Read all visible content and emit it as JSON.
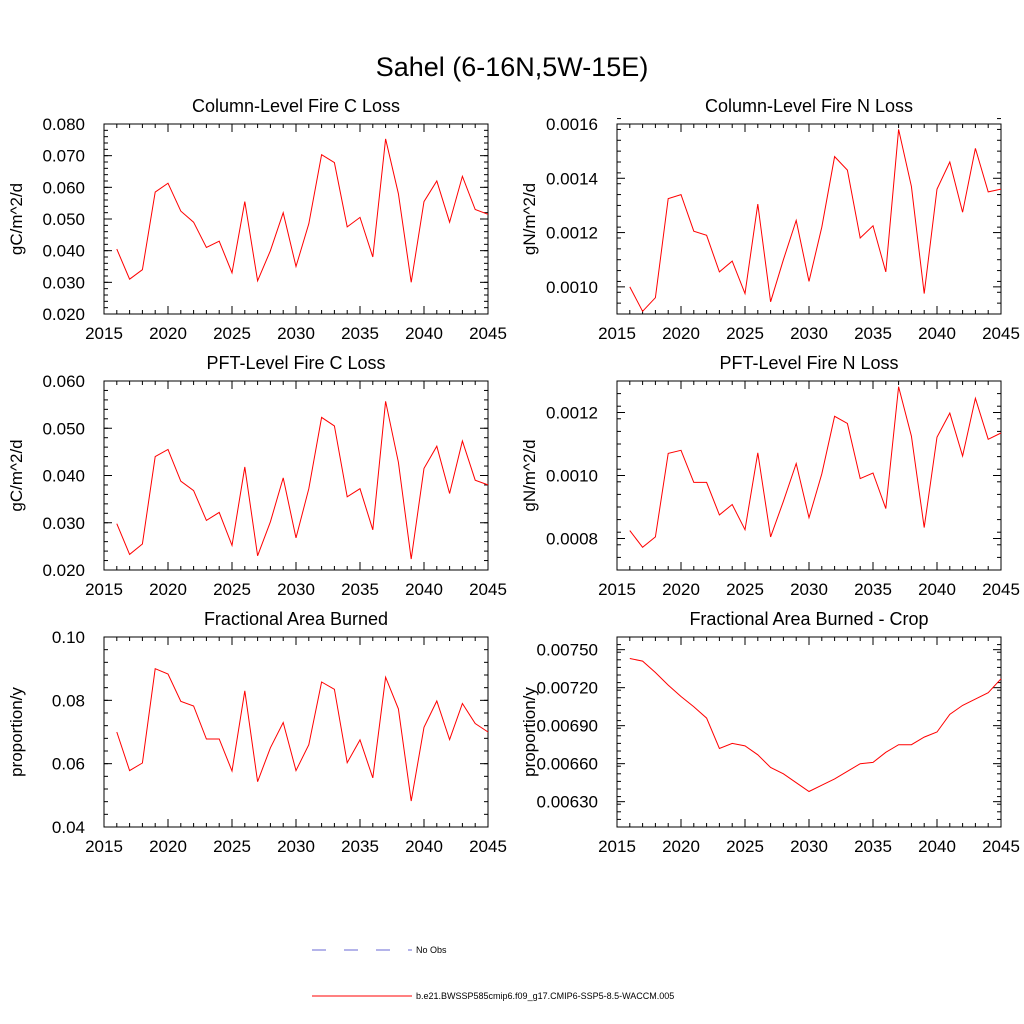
{
  "figure_title": "Sahel (6-16N,5W-15E)",
  "colors": {
    "series": "#ff0000",
    "obs": "#6a6ad6",
    "axis": "#000000"
  },
  "legend": {
    "obs_label": "No Obs",
    "model_label": "b.e21.BWSSP585cmip6.f09_g17.CMIP6-SSP5-8.5-WACCM.005"
  },
  "chart_data": [
    {
      "type": "line",
      "title": "Column-Level Fire C Loss",
      "xlabel": "",
      "ylabel": "gC/m^2/d",
      "xlim": [
        2015,
        2045
      ],
      "ylim": [
        0.02,
        0.08
      ],
      "xticks": [
        2015,
        2020,
        2025,
        2030,
        2035,
        2040,
        2045
      ],
      "xtick_labels": [
        "2015",
        "2020",
        "2025",
        "2030",
        "2035",
        "2040",
        "2045"
      ],
      "yticks": [
        0.02,
        0.03,
        0.04,
        0.05,
        0.06,
        0.07,
        0.08
      ],
      "ytick_labels": [
        "0.020",
        "0.030",
        "0.040",
        "0.050",
        "0.060",
        "0.070",
        "0.080"
      ],
      "yminor": 0.002,
      "series": [
        {
          "name": "b.e21.BWSSP585cmip6.f09_g17.CMIP6-SSP5-8.5-WACCM.005",
          "x": [
            2016,
            2017,
            2018,
            2019,
            2020,
            2021,
            2022,
            2023,
            2024,
            2025,
            2026,
            2027,
            2028,
            2029,
            2030,
            2031,
            2032,
            2033,
            2034,
            2035,
            2036,
            2037,
            2038,
            2039,
            2040,
            2041,
            2042,
            2043,
            2044,
            2045
          ],
          "y": [
            0.0405,
            0.031,
            0.034,
            0.0585,
            0.0613,
            0.0525,
            0.049,
            0.041,
            0.043,
            0.033,
            0.0555,
            0.0305,
            0.04,
            0.052,
            0.035,
            0.0485,
            0.0703,
            0.0678,
            0.0475,
            0.0505,
            0.038,
            0.0753,
            0.058,
            0.03,
            0.0555,
            0.062,
            0.049,
            0.0635,
            0.053,
            0.0515
          ]
        }
      ]
    },
    {
      "type": "line",
      "title": "Column-Level Fire N Loss",
      "xlabel": "",
      "ylabel": "gN/m^2/d",
      "xlim": [
        2015,
        2045
      ],
      "ylim": [
        0.0009,
        0.0016
      ],
      "xticks": [
        2015,
        2020,
        2025,
        2030,
        2035,
        2040,
        2045
      ],
      "xtick_labels": [
        "2015",
        "2020",
        "2025",
        "2030",
        "2035",
        "2040",
        "2045"
      ],
      "yticks": [
        0.001,
        0.0012,
        0.0014,
        0.0016
      ],
      "ytick_labels": [
        "0.0010",
        "0.0012",
        "0.0014",
        "0.0016"
      ],
      "yminor": 4e-05,
      "series": [
        {
          "name": "b.e21.BWSSP585cmip6.f09_g17.CMIP6-SSP5-8.5-WACCM.005",
          "x": [
            2016,
            2017,
            2018,
            2019,
            2020,
            2021,
            2022,
            2023,
            2024,
            2025,
            2026,
            2027,
            2028,
            2029,
            2030,
            2031,
            2032,
            2033,
            2034,
            2035,
            2036,
            2037,
            2038,
            2039,
            2040,
            2041,
            2042,
            2043,
            2044,
            2045
          ],
          "y": [
            0.001,
            0.00091,
            0.00096,
            0.001325,
            0.00134,
            0.001205,
            0.00119,
            0.001055,
            0.001095,
            0.000975,
            0.001305,
            0.000945,
            0.0011,
            0.001245,
            0.00102,
            0.00122,
            0.00148,
            0.00143,
            0.00118,
            0.001225,
            0.001055,
            0.00158,
            0.00137,
            0.000975,
            0.00136,
            0.00146,
            0.001275,
            0.00151,
            0.00135,
            0.00136
          ]
        }
      ]
    },
    {
      "type": "line",
      "title": "PFT-Level Fire C Loss",
      "xlabel": "",
      "ylabel": "gC/m^2/d",
      "xlim": [
        2015,
        2045
      ],
      "ylim": [
        0.02,
        0.06
      ],
      "xticks": [
        2015,
        2020,
        2025,
        2030,
        2035,
        2040,
        2045
      ],
      "xtick_labels": [
        "2015",
        "2020",
        "2025",
        "2030",
        "2035",
        "2040",
        "2045"
      ],
      "yticks": [
        0.02,
        0.03,
        0.04,
        0.05,
        0.06
      ],
      "ytick_labels": [
        "0.020",
        "0.030",
        "0.040",
        "0.050",
        "0.060"
      ],
      "yminor": 0.002,
      "series": [
        {
          "name": "b.e21.BWSSP585cmip6.f09_g17.CMIP6-SSP5-8.5-WACCM.005",
          "x": [
            2016,
            2017,
            2018,
            2019,
            2020,
            2021,
            2022,
            2023,
            2024,
            2025,
            2026,
            2027,
            2028,
            2029,
            2030,
            2031,
            2032,
            2033,
            2034,
            2035,
            2036,
            2037,
            2038,
            2039,
            2040,
            2041,
            2042,
            2043,
            2044,
            2045
          ],
          "y": [
            0.0298,
            0.0233,
            0.0255,
            0.044,
            0.0455,
            0.0388,
            0.0368,
            0.0305,
            0.0322,
            0.0252,
            0.0418,
            0.023,
            0.0302,
            0.0395,
            0.0268,
            0.0372,
            0.0523,
            0.0505,
            0.0355,
            0.0372,
            0.0285,
            0.0557,
            0.0428,
            0.0223,
            0.0415,
            0.0462,
            0.0362,
            0.0473,
            0.039,
            0.038
          ]
        }
      ]
    },
    {
      "type": "line",
      "title": "PFT-Level Fire N Loss",
      "xlabel": "",
      "ylabel": "gN/m^2/d",
      "xlim": [
        2015,
        2045
      ],
      "ylim": [
        0.0007,
        0.0013
      ],
      "xticks": [
        2015,
        2020,
        2025,
        2030,
        2035,
        2040,
        2045
      ],
      "xtick_labels": [
        "2015",
        "2020",
        "2025",
        "2030",
        "2035",
        "2040",
        "2045"
      ],
      "yticks": [
        0.0008,
        0.001,
        0.0012
      ],
      "ytick_labels": [
        "0.0008",
        "0.0010",
        "0.0012"
      ],
      "yminor": 4e-05,
      "series": [
        {
          "name": "b.e21.BWSSP585cmip6.f09_g17.CMIP6-SSP5-8.5-WACCM.005",
          "x": [
            2016,
            2017,
            2018,
            2019,
            2020,
            2021,
            2022,
            2023,
            2024,
            2025,
            2026,
            2027,
            2028,
            2029,
            2030,
            2031,
            2032,
            2033,
            2034,
            2035,
            2036,
            2037,
            2038,
            2039,
            2040,
            2041,
            2042,
            2043,
            2044,
            2045
          ],
          "y": [
            0.000825,
            0.000772,
            0.000805,
            0.00107,
            0.00108,
            0.000978,
            0.000978,
            0.000875,
            0.000908,
            0.000828,
            0.001072,
            0.000805,
            0.000918,
            0.001038,
            0.000866,
            0.001005,
            0.001188,
            0.001165,
            0.00099,
            0.001008,
            0.000895,
            0.001282,
            0.001125,
            0.000835,
            0.001122,
            0.001198,
            0.001062,
            0.001245,
            0.001115,
            0.001135
          ]
        }
      ]
    },
    {
      "type": "line",
      "title": "Fractional Area Burned",
      "xlabel": "",
      "ylabel": "proportion/y",
      "xlim": [
        2015,
        2045
      ],
      "ylim": [
        0.04,
        0.1
      ],
      "xticks": [
        2015,
        2020,
        2025,
        2030,
        2035,
        2040,
        2045
      ],
      "xtick_labels": [
        "2015",
        "2020",
        "2025",
        "2030",
        "2035",
        "2040",
        "2045"
      ],
      "yticks": [
        0.04,
        0.06,
        0.08,
        0.1
      ],
      "ytick_labels": [
        "0.04",
        "0.06",
        "0.08",
        "0.10"
      ],
      "yminor": 0.004,
      "series": [
        {
          "name": "b.e21.BWSSP585cmip6.f09_g17.CMIP6-SSP5-8.5-WACCM.005",
          "x": [
            2016,
            2017,
            2018,
            2019,
            2020,
            2021,
            2022,
            2023,
            2024,
            2025,
            2026,
            2027,
            2028,
            2029,
            2030,
            2031,
            2032,
            2033,
            2034,
            2035,
            2036,
            2037,
            2038,
            2039,
            2040,
            2041,
            2042,
            2043,
            2044,
            2045
          ],
          "y": [
            0.07,
            0.0578,
            0.0602,
            0.09,
            0.0883,
            0.0797,
            0.0782,
            0.0678,
            0.0678,
            0.0577,
            0.083,
            0.0543,
            0.065,
            0.073,
            0.0578,
            0.066,
            0.0858,
            0.0835,
            0.0603,
            0.0675,
            0.0555,
            0.0873,
            0.0773,
            0.0482,
            0.0715,
            0.0798,
            0.0676,
            0.079,
            0.0727,
            0.07
          ]
        }
      ]
    },
    {
      "type": "line",
      "title": "Fractional Area Burned - Crop",
      "xlabel": "",
      "ylabel": "proportion/y",
      "xlim": [
        2015,
        2045
      ],
      "ylim": [
        0.0061,
        0.0076
      ],
      "xticks": [
        2015,
        2020,
        2025,
        2030,
        2035,
        2040,
        2045
      ],
      "xtick_labels": [
        "2015",
        "2020",
        "2025",
        "2030",
        "2035",
        "2040",
        "2045"
      ],
      "yticks": [
        0.0063,
        0.0066,
        0.0069,
        0.0072,
        0.0075
      ],
      "ytick_labels": [
        "0.00630",
        "0.00660",
        "0.00690",
        "0.00720",
        "0.00750"
      ],
      "yminor": 6e-05,
      "series": [
        {
          "name": "b.e21.BWSSP585cmip6.f09_g17.CMIP6-SSP5-8.5-WACCM.005",
          "x": [
            2016,
            2017,
            2018,
            2019,
            2020,
            2021,
            2022,
            2023,
            2024,
            2025,
            2026,
            2027,
            2028,
            2029,
            2030,
            2031,
            2032,
            2033,
            2034,
            2035,
            2036,
            2037,
            2038,
            2039,
            2040,
            2041,
            2042,
            2043,
            2044,
            2045
          ],
          "y": [
            0.00743,
            0.00741,
            0.00732,
            0.00722,
            0.00713,
            0.00705,
            0.00696,
            0.00672,
            0.00676,
            0.00674,
            0.00667,
            0.00657,
            0.00652,
            0.00645,
            0.00638,
            0.00643,
            0.00648,
            0.00654,
            0.0066,
            0.00661,
            0.00669,
            0.00675,
            0.00675,
            0.00681,
            0.00685,
            0.00699,
            0.00706,
            0.00711,
            0.00716,
            0.00727
          ]
        }
      ]
    }
  ]
}
